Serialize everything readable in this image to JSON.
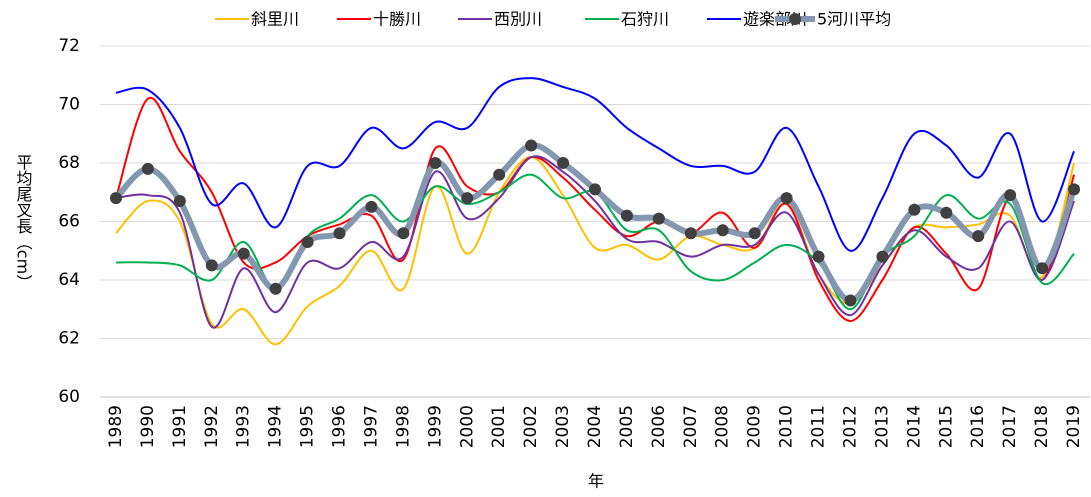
{
  "chart_data": {
    "type": "line",
    "x_label": "年",
    "y_label": "平均尾叉長（cm）",
    "categories": [
      "1989",
      "1990",
      "1991",
      "1992",
      "1993",
      "1994",
      "1995",
      "1996",
      "1997",
      "1998",
      "1999",
      "2000",
      "2001",
      "2002",
      "2003",
      "2004",
      "2005",
      "2006",
      "2007",
      "2008",
      "2009",
      "2010",
      "2011",
      "2012",
      "2013",
      "2014",
      "2015",
      "2016",
      "2017",
      "2018",
      "2019"
    ],
    "ylim": [
      60,
      72
    ],
    "yticks": [
      60,
      62,
      64,
      66,
      68,
      70,
      72
    ],
    "grid": true,
    "legend": "top",
    "smooth": true,
    "series": [
      {
        "name": "斜里川",
        "color": "#FFC000",
        "values": [
          65.6,
          66.7,
          66.0,
          62.5,
          63.0,
          61.8,
          63.1,
          63.8,
          65.0,
          63.7,
          67.2,
          64.9,
          67.0,
          68.2,
          66.9,
          65.1,
          65.2,
          64.7,
          65.5,
          65.2,
          65.1,
          66.6,
          64.2,
          63.2,
          64.5,
          65.8,
          65.8,
          65.9,
          66.2,
          64.1,
          68.0
        ]
      },
      {
        "name": "十勝川",
        "color": "#FF0000",
        "values": [
          66.8,
          70.2,
          68.4,
          67.0,
          64.6,
          64.6,
          65.5,
          65.9,
          66.2,
          64.7,
          68.5,
          67.2,
          67.0,
          68.2,
          67.5,
          66.4,
          65.5,
          66.0,
          65.6,
          66.3,
          65.1,
          66.6,
          64.0,
          62.6,
          64.0,
          65.8,
          64.9,
          63.7,
          66.8,
          64.0,
          67.6
        ]
      },
      {
        "name": "西別川",
        "color": "#7030A0",
        "values": [
          66.8,
          66.9,
          66.3,
          62.4,
          64.4,
          62.9,
          64.6,
          64.4,
          65.3,
          64.8,
          67.7,
          66.1,
          66.8,
          68.2,
          67.7,
          66.7,
          65.4,
          65.3,
          64.8,
          65.2,
          65.2,
          66.3,
          64.2,
          62.8,
          64.5,
          65.7,
          64.8,
          64.4,
          66.0,
          64.0,
          66.7
        ]
      },
      {
        "name": "石狩川",
        "color": "#00B050",
        "values": [
          64.6,
          64.6,
          64.5,
          64.0,
          65.3,
          63.7,
          65.5,
          66.1,
          66.9,
          66.0,
          67.2,
          66.6,
          67.0,
          67.6,
          66.8,
          67.0,
          65.7,
          65.7,
          64.3,
          64.0,
          64.6,
          65.2,
          64.6,
          63.0,
          64.8,
          65.5,
          66.9,
          66.1,
          66.6,
          63.9,
          64.9
        ]
      },
      {
        "name": "遊楽部川",
        "color": "#0000FF",
        "values": [
          70.4,
          70.5,
          69.2,
          66.6,
          67.3,
          65.8,
          67.9,
          67.9,
          69.2,
          68.5,
          69.4,
          69.2,
          70.6,
          70.9,
          70.6,
          70.2,
          69.2,
          68.5,
          67.9,
          67.9,
          67.7,
          69.2,
          67.2,
          65.0,
          66.8,
          69.0,
          68.6,
          67.5,
          69.0,
          66.0,
          68.4
        ]
      },
      {
        "name": "5河川平均",
        "color": "#8497B0",
        "marker_color": "#404040",
        "values": [
          66.8,
          67.8,
          66.7,
          64.5,
          64.9,
          63.7,
          65.3,
          65.6,
          66.5,
          65.6,
          68.0,
          66.8,
          67.6,
          68.6,
          68.0,
          67.1,
          66.2,
          66.1,
          65.6,
          65.7,
          65.6,
          66.8,
          64.8,
          63.3,
          64.8,
          66.4,
          66.3,
          65.5,
          66.9,
          64.4,
          67.1
        ]
      }
    ]
  }
}
